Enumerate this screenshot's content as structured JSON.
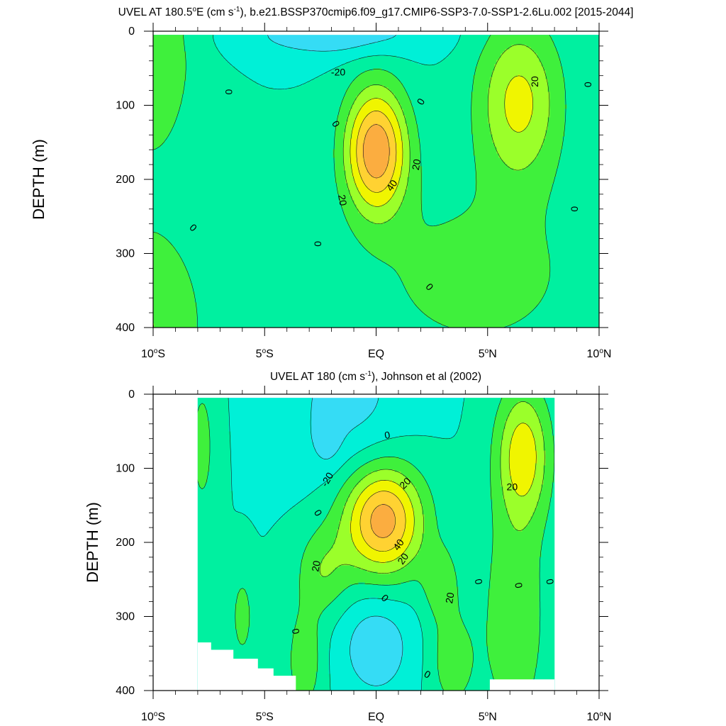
{
  "chart_data": [
    {
      "type": "contour",
      "title_prefix": "UVEL AT 180.5",
      "title_deg": "o",
      "title_mid": "E (cm s",
      "title_exp": "-1",
      "title_suffix": "), b.e21.BSSP370cmip6.f09_g17.CMIP6-SSP3-7.0-SSP1-2.6Lu.002 [2015-2044]",
      "ylabel": "DEPTH (m)",
      "xlim": [
        -10,
        10
      ],
      "ylim": [
        0,
        400
      ],
      "y_reversed": true,
      "x_ticks": [
        {
          "value": -10,
          "num": "10",
          "deg": "o",
          "hem": "S"
        },
        {
          "value": -5,
          "num": "5",
          "deg": "o",
          "hem": "S"
        },
        {
          "value": 0,
          "num": "EQ",
          "deg": "",
          "hem": ""
        },
        {
          "value": 5,
          "num": "5",
          "deg": "o",
          "hem": "N"
        },
        {
          "value": 10,
          "num": "10",
          "deg": "o",
          "hem": "N"
        }
      ],
      "y_ticks": [
        "0",
        "100",
        "200",
        "300",
        "400"
      ],
      "data_extent": {
        "x": [
          -10,
          10
        ],
        "y": [
          5,
          400
        ]
      },
      "background_level": "0",
      "contour_interval": 10,
      "colors": {
        "-20": "#35dcf5",
        "-10": "#00f0d7",
        "0": "#00f0a0",
        "10": "#3ff03c",
        "20": "#9bff2a",
        "30": "#f0f500",
        "40": "#ffd232",
        "50": "#fbad40",
        "60": "#f7903f"
      },
      "features": [
        {
          "x": -10.1,
          "y": 30,
          "sx": 2.0,
          "sy": 150,
          "amp": 19
        },
        {
          "x": -10.1,
          "y": 400,
          "sx": 2.5,
          "sy": 140,
          "amp": 20
        },
        {
          "x": 0.0,
          "y": 160,
          "sx": 1.4,
          "sy": 85,
          "amp": 58
        },
        {
          "x": 6.4,
          "y": 95,
          "sx": 1.9,
          "sy": 110,
          "amp": 33
        },
        {
          "x": 4.5,
          "y": 330,
          "sx": 5.5,
          "sy": 130,
          "amp": 14
        },
        {
          "x": -1.8,
          "y": 5,
          "sx": 4.0,
          "sy": 30,
          "amp": -18
        }
      ],
      "contour_labels": [
        {
          "text": "-20",
          "x": -1.7,
          "y": 55,
          "rot": 0
        },
        {
          "text": "0",
          "x": -6.6,
          "y": 82,
          "rot": 90
        },
        {
          "text": "0",
          "x": -1.8,
          "y": 125,
          "rot": 60
        },
        {
          "text": "0",
          "x": 2.0,
          "y": 95,
          "rot": -60
        },
        {
          "text": "0",
          "x": 9.5,
          "y": 72,
          "rot": 90
        },
        {
          "text": "20",
          "x": 7.1,
          "y": 68,
          "rot": -90
        },
        {
          "text": "20",
          "x": 1.8,
          "y": 180,
          "rot": -80
        },
        {
          "text": "40",
          "x": 0.7,
          "y": 208,
          "rot": -55
        },
        {
          "text": "20",
          "x": -1.5,
          "y": 228,
          "rot": 80
        },
        {
          "text": "0",
          "x": -8.2,
          "y": 265,
          "rot": 45
        },
        {
          "text": "0",
          "x": -2.6,
          "y": 287,
          "rot": 90
        },
        {
          "text": "0",
          "x": 8.9,
          "y": 240,
          "rot": 90
        },
        {
          "text": "0",
          "x": 2.4,
          "y": 345,
          "rot": 50
        }
      ]
    },
    {
      "type": "contour",
      "title_prefix": "UVEL AT 180 (cm s",
      "title_deg": "",
      "title_mid": "",
      "title_exp": "-1",
      "title_suffix": "), Johnson et al (2002)",
      "ylabel": "DEPTH (m)",
      "xlim": [
        -10,
        10
      ],
      "ylim": [
        0,
        400
      ],
      "y_reversed": true,
      "x_ticks": [
        {
          "value": -10,
          "num": "10",
          "deg": "o",
          "hem": "S"
        },
        {
          "value": -5,
          "num": "5",
          "deg": "o",
          "hem": "S"
        },
        {
          "value": 0,
          "num": "EQ",
          "deg": "",
          "hem": ""
        },
        {
          "value": 5,
          "num": "5",
          "deg": "o",
          "hem": "N"
        },
        {
          "value": 10,
          "num": "10",
          "deg": "o",
          "hem": "N"
        }
      ],
      "y_ticks": [
        "0",
        "100",
        "200",
        "300",
        "400"
      ],
      "data_extent": {
        "x": [
          -8,
          8
        ],
        "y": [
          5,
          400
        ]
      },
      "background_level": "-10",
      "contour_interval": 10,
      "colors": {
        "-20": "#35dcf5",
        "-10": "#00f0d7",
        "0": "#00f0a0",
        "10": "#3ff03c",
        "20": "#9bff2a",
        "30": "#f0f500",
        "40": "#ffd232",
        "50": "#fbad40",
        "60": "#f7903f"
      },
      "missing_regions": [
        [
          [
            -8.0,
            335
          ],
          [
            -7.4,
            335
          ],
          [
            -7.4,
            345
          ],
          [
            -6.4,
            345
          ],
          [
            -6.4,
            357
          ],
          [
            -5.3,
            357
          ],
          [
            -5.3,
            370
          ],
          [
            -4.6,
            370
          ],
          [
            -4.6,
            380
          ],
          [
            -3.6,
            380
          ],
          [
            -3.6,
            400
          ],
          [
            -8.0,
            400
          ]
        ],
        [
          [
            5.1,
            385
          ],
          [
            8.0,
            385
          ],
          [
            8.0,
            400
          ],
          [
            5.1,
            400
          ]
        ]
      ],
      "features": [
        {
          "x": -1.3,
          "y": 5,
          "sx": 2.6,
          "sy": 110,
          "amp": -14
        },
        {
          "x": -2.2,
          "y": 60,
          "sx": 0.6,
          "sy": 35,
          "amp": -10
        },
        {
          "x": 0.3,
          "y": 170,
          "sx": 1.8,
          "sy": 75,
          "amp": 56
        },
        {
          "x": -2.4,
          "y": 240,
          "sx": 1.2,
          "sy": 60,
          "amp": 18
        },
        {
          "x": 2.9,
          "y": 255,
          "sx": 0.8,
          "sy": 50,
          "amp": 16
        },
        {
          "x": 6.6,
          "y": 80,
          "sx": 1.2,
          "sy": 90,
          "amp": 35
        },
        {
          "x": 6.2,
          "y": 300,
          "sx": 1.5,
          "sy": 170,
          "amp": 18
        },
        {
          "x": -3.2,
          "y": 360,
          "sx": 0.8,
          "sy": 70,
          "amp": 18
        },
        {
          "x": 3.4,
          "y": 360,
          "sx": 1.0,
          "sy": 70,
          "amp": 16
        },
        {
          "x": 0.0,
          "y": 340,
          "sx": 1.6,
          "sy": 70,
          "amp": -18
        },
        {
          "x": -6.0,
          "y": 300,
          "sx": 0.5,
          "sy": 60,
          "amp": 15
        },
        {
          "x": -7.8,
          "y": 70,
          "sx": 0.6,
          "sy": 100,
          "amp": 14
        },
        {
          "x": -7.5,
          "y": 330,
          "sx": 0.4,
          "sy": 40,
          "amp": 9
        }
      ],
      "contour_labels": [
        {
          "text": "0",
          "x": 0.5,
          "y": 55,
          "rot": -10
        },
        {
          "text": "-20",
          "x": -2.2,
          "y": 115,
          "rot": -60
        },
        {
          "text": "20",
          "x": 1.3,
          "y": 120,
          "rot": -45
        },
        {
          "text": "20",
          "x": 6.1,
          "y": 125,
          "rot": 0
        },
        {
          "text": "0",
          "x": -2.6,
          "y": 160,
          "rot": 60
        },
        {
          "text": "40",
          "x": 1.0,
          "y": 203,
          "rot": -55
        },
        {
          "text": "20",
          "x": 1.2,
          "y": 222,
          "rot": -55
        },
        {
          "text": "20",
          "x": -2.7,
          "y": 232,
          "rot": -80
        },
        {
          "text": "20",
          "x": 3.3,
          "y": 275,
          "rot": -80
        },
        {
          "text": "0",
          "x": 4.6,
          "y": 253,
          "rot": 80
        },
        {
          "text": "0",
          "x": 6.4,
          "y": 258,
          "rot": 80
        },
        {
          "text": "0",
          "x": 7.8,
          "y": 253,
          "rot": 80
        },
        {
          "text": "0",
          "x": 0.4,
          "y": 275,
          "rot": 45
        },
        {
          "text": "0",
          "x": -3.6,
          "y": 320,
          "rot": 80
        },
        {
          "text": "0",
          "x": 2.3,
          "y": 378,
          "rot": 30
        }
      ]
    }
  ]
}
